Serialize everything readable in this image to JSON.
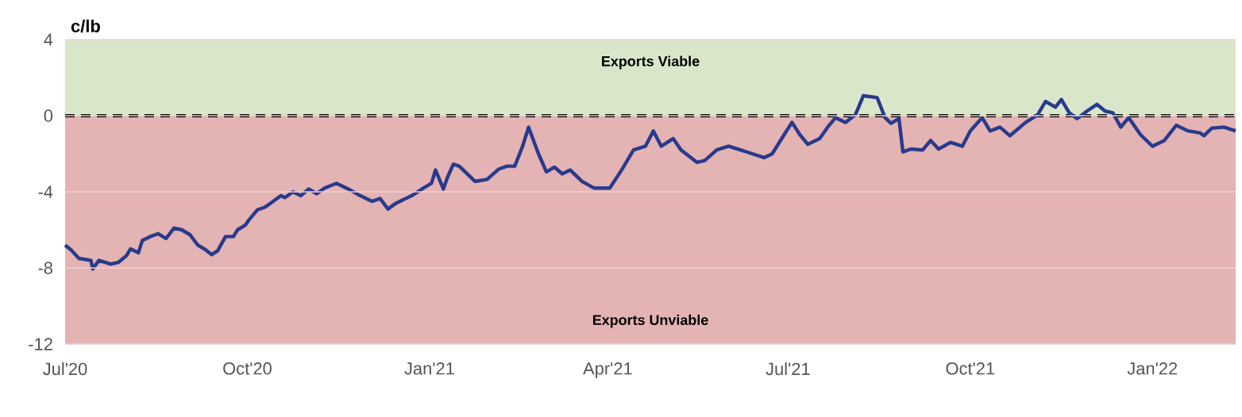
{
  "chart_data": {
    "type": "line",
    "ylabel": "c/lb",
    "x": [
      "2020-07-01",
      "2020-07-04",
      "2020-07-08",
      "2020-07-14",
      "2020-07-15",
      "2020-07-18",
      "2020-07-24",
      "2020-07-28",
      "2020-08-01",
      "2020-08-03",
      "2020-08-07",
      "2020-08-09",
      "2020-08-13",
      "2020-08-17",
      "2020-08-21",
      "2020-08-25",
      "2020-08-29",
      "2020-09-02",
      "2020-09-06",
      "2020-09-10",
      "2020-09-13",
      "2020-09-16",
      "2020-09-20",
      "2020-09-24",
      "2020-09-26",
      "2020-09-30",
      "2020-10-02",
      "2020-10-06",
      "2020-10-10",
      "2020-10-14",
      "2020-10-18",
      "2020-10-20",
      "2020-10-24",
      "2020-10-28",
      "2020-11-01",
      "2020-11-05",
      "2020-11-09",
      "2020-11-15",
      "2020-11-21",
      "2020-11-27",
      "2020-12-03",
      "2020-12-07",
      "2020-12-11",
      "2020-12-15",
      "2020-12-19",
      "2020-12-23",
      "2020-12-29",
      "2021-01-02",
      "2021-01-04",
      "2021-01-08",
      "2021-01-10",
      "2021-01-13",
      "2021-01-16",
      "2021-01-20",
      "2021-01-24",
      "2021-01-30",
      "2021-02-05",
      "2021-02-09",
      "2021-02-13",
      "2021-02-17",
      "2021-02-20",
      "2021-02-25",
      "2021-03-01",
      "2021-03-05",
      "2021-03-09",
      "2021-03-13",
      "2021-03-19",
      "2021-03-25",
      "2021-04-02",
      "2021-04-08",
      "2021-04-14",
      "2021-04-20",
      "2021-04-24",
      "2021-04-28",
      "2021-05-04",
      "2021-05-08",
      "2021-05-16",
      "2021-05-20",
      "2021-05-26",
      "2021-06-01",
      "2021-06-07",
      "2021-06-13",
      "2021-06-19",
      "2021-06-23",
      "2021-06-29",
      "2021-07-03",
      "2021-07-07",
      "2021-07-11",
      "2021-07-17",
      "2021-07-21",
      "2021-07-25",
      "2021-07-30",
      "2021-08-04",
      "2021-08-08",
      "2021-08-15",
      "2021-08-19",
      "2021-08-22",
      "2021-08-26",
      "2021-08-28",
      "2021-09-01",
      "2021-09-07",
      "2021-09-11",
      "2021-09-15",
      "2021-09-21",
      "2021-09-27",
      "2021-10-01",
      "2021-10-07",
      "2021-10-11",
      "2021-10-16",
      "2021-10-21",
      "2021-10-29",
      "2021-11-04",
      "2021-11-08",
      "2021-11-13",
      "2021-11-16",
      "2021-11-20",
      "2021-11-24",
      "2021-11-29",
      "2021-12-04",
      "2021-12-08",
      "2021-12-12",
      "2021-12-16",
      "2021-12-20",
      "2021-12-26",
      "2022-01-01",
      "2022-01-07",
      "2022-01-13",
      "2022-01-19",
      "2022-01-25",
      "2022-01-27",
      "2022-01-31",
      "2022-02-06",
      "2022-02-12"
    ],
    "series": [
      {
        "color": "#283a8c",
        "values": [
          -6.8,
          -7.05,
          -7.5,
          -7.6,
          -8.05,
          -7.6,
          -7.8,
          -7.7,
          -7.35,
          -7.0,
          -7.2,
          -6.55,
          -6.35,
          -6.2,
          -6.45,
          -5.9,
          -6.0,
          -6.25,
          -6.8,
          -7.05,
          -7.3,
          -7.1,
          -6.35,
          -6.35,
          -6.0,
          -5.75,
          -5.45,
          -4.95,
          -4.8,
          -4.5,
          -4.2,
          -4.3,
          -4.0,
          -4.2,
          -3.85,
          -4.1,
          -3.8,
          -3.55,
          -3.85,
          -4.2,
          -4.5,
          -4.35,
          -4.9,
          -4.6,
          -4.4,
          -4.2,
          -3.8,
          -3.55,
          -2.85,
          -3.85,
          -3.25,
          -2.55,
          -2.65,
          -3.05,
          -3.45,
          -3.35,
          -2.8,
          -2.65,
          -2.65,
          -1.6,
          -0.6,
          -2.0,
          -2.95,
          -2.7,
          -3.05,
          -2.85,
          -3.45,
          -3.8,
          -3.8,
          -2.85,
          -1.8,
          -1.6,
          -0.8,
          -1.6,
          -1.2,
          -1.8,
          -2.45,
          -2.35,
          -1.8,
          -1.6,
          -1.8,
          -2.0,
          -2.2,
          -2.0,
          -1.0,
          -0.35,
          -1.0,
          -1.5,
          -1.2,
          -0.6,
          -0.1,
          -0.35,
          0.05,
          1.05,
          0.95,
          -0.1,
          -0.4,
          -0.15,
          -1.9,
          -1.75,
          -1.8,
          -1.3,
          -1.75,
          -1.4,
          -1.6,
          -0.8,
          -0.1,
          -0.8,
          -0.6,
          -1.05,
          -0.35,
          0.05,
          0.75,
          0.45,
          0.85,
          0.15,
          -0.15,
          0.25,
          0.6,
          0.25,
          0.15,
          -0.6,
          -0.1,
          -1.0,
          -1.6,
          -1.3,
          -0.5,
          -0.8,
          -0.9,
          -1.05,
          -0.65,
          -0.6,
          -0.8
        ]
      }
    ],
    "xlim": [
      "2020-07-01",
      "2022-02-12"
    ],
    "xticks": [
      {
        "value": "2020-07-01",
        "label": "Jul'20"
      },
      {
        "value": "2020-10-01",
        "label": "Oct'20"
      },
      {
        "value": "2021-01-01",
        "label": "Jan'21"
      },
      {
        "value": "2021-04-01",
        "label": "Apr'21"
      },
      {
        "value": "2021-07-01",
        "label": "Jul'21"
      },
      {
        "value": "2021-10-01",
        "label": "Oct'21"
      },
      {
        "value": "2022-01-01",
        "label": "Jan'22"
      }
    ],
    "ylim": [
      -12,
      4
    ],
    "yticks": [
      -12,
      -8,
      -4,
      0,
      4
    ],
    "grid": "y",
    "bands": [
      {
        "axis": "y",
        "from": 0,
        "to": 4,
        "label": "Exports Viable",
        "color": "#d9e6c9"
      },
      {
        "axis": "y",
        "from": -12,
        "to": 0,
        "label": "Exports Unviable",
        "color": "#e4b3b3"
      }
    ],
    "ref_lines": [
      {
        "axis": "y",
        "value": 0,
        "color": "#000000",
        "line_style": "dashed"
      }
    ]
  }
}
